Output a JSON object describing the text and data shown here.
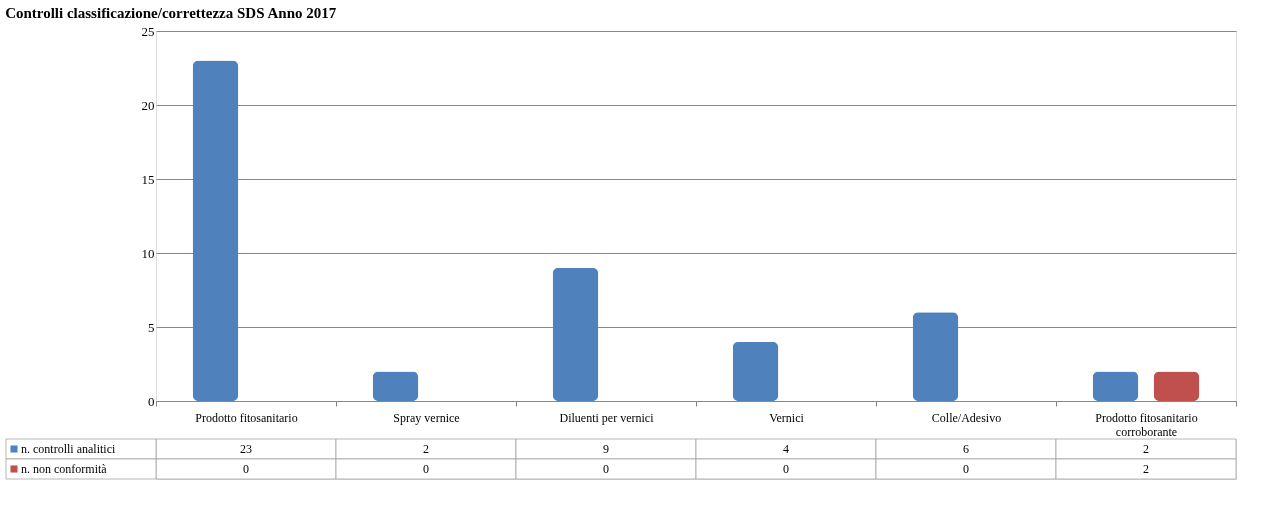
{
  "chart_data": {
    "type": "bar",
    "title": "Controlli classificazione/correttezza SDS Anno 2017",
    "categories": [
      "Prodotto fitosanitario",
      "Spray vernice",
      "Diluenti per vernici",
      "Vernici",
      "Colle/Adesivo",
      "Prodotto fitosanitario corroborante"
    ],
    "series": [
      {
        "name": "n. controlli analitici",
        "color": "#4f81bd",
        "values": [
          23,
          2,
          9,
          4,
          6,
          2
        ]
      },
      {
        "name": "n. non conformità",
        "color": "#c0504d",
        "values": [
          0,
          0,
          0,
          0,
          0,
          2
        ]
      }
    ],
    "ylim": [
      0,
      25
    ],
    "yticks": [
      0,
      5,
      10,
      15,
      20,
      25
    ],
    "grid": "y",
    "legend": "bottom",
    "data_labels": true
  }
}
